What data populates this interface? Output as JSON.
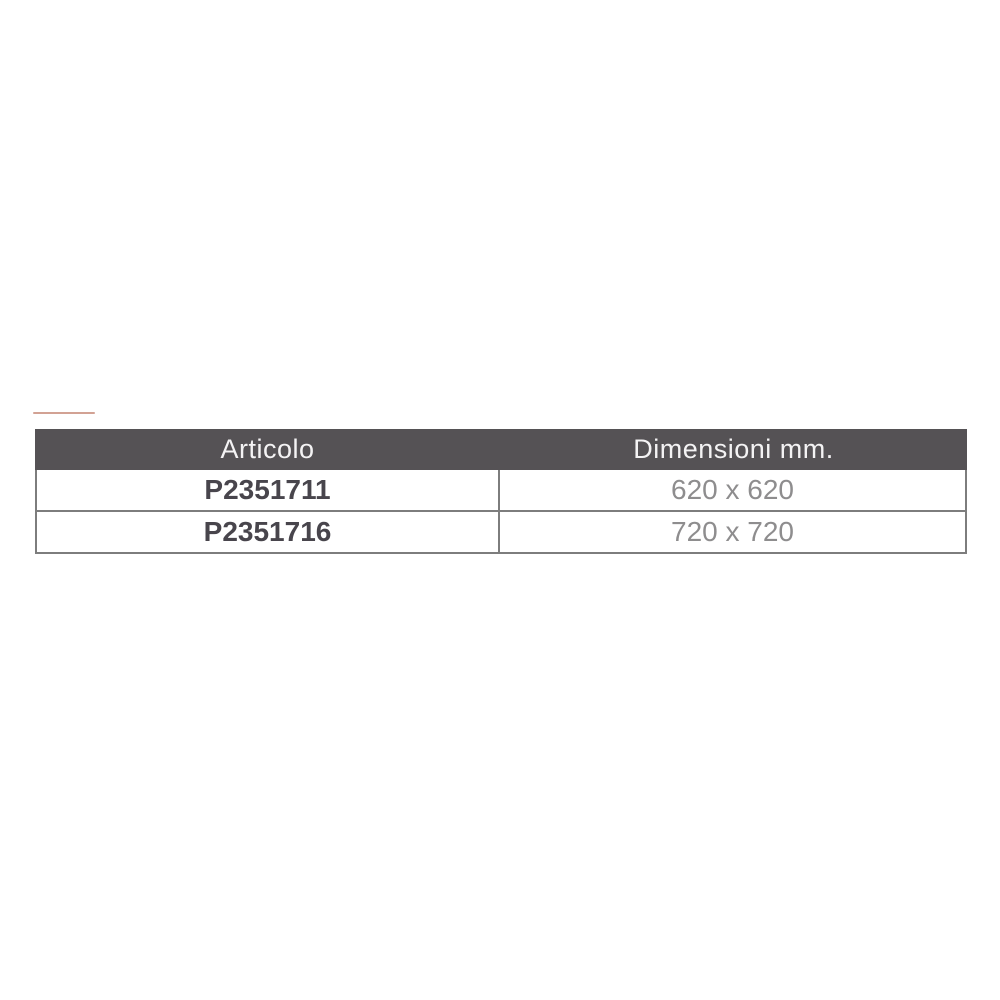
{
  "colors": {
    "page-bg": "#ffffff",
    "accent": "#d2a294",
    "header-bg": "#555255",
    "header-text": "#f4f3f4",
    "border": "#7d7d7d",
    "article-text": "#48454c",
    "dims-text": "#8e8d8e"
  },
  "table": {
    "columns": [
      {
        "label": "Articolo"
      },
      {
        "label": "Dimensioni mm."
      }
    ],
    "rows": [
      {
        "article": "P2351711",
        "dimensions": "620 x 620"
      },
      {
        "article": "P2351716",
        "dimensions": "720 x 720"
      }
    ]
  }
}
